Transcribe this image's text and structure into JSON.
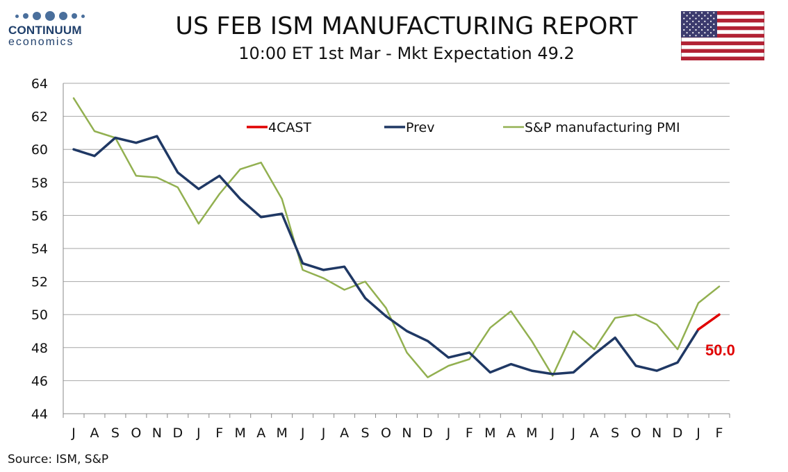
{
  "logo": {
    "name": "CONTINUUM",
    "sub": "economics"
  },
  "header": {
    "title": "US FEB ISM MANUFACTURING REPORT",
    "subtitle": "10:00 ET 1st Mar - Mkt Expectation 49.2"
  },
  "flag_icon": "us-flag-icon",
  "source": "Source: ISM, S&P",
  "colors": {
    "forecast": "#e00000",
    "prev": "#1f3864",
    "pmi": "#92b050",
    "grid": "#a6a6a6"
  },
  "chart_data": {
    "type": "line",
    "categories": [
      "J",
      "A",
      "S",
      "O",
      "N",
      "D",
      "J",
      "F",
      "M",
      "A",
      "M",
      "J",
      "J",
      "A",
      "S",
      "O",
      "N",
      "D",
      "J",
      "F",
      "M",
      "A",
      "M",
      "J",
      "J",
      "A",
      "S",
      "O",
      "N",
      "D",
      "J",
      "F"
    ],
    "ylim": [
      44,
      64
    ],
    "yticks": [
      44,
      46,
      48,
      50,
      52,
      54,
      56,
      58,
      60,
      62,
      64
    ],
    "grid": true,
    "legend": "top",
    "series": [
      {
        "name": "4CAST",
        "color": "#e00000",
        "values": [
          null,
          null,
          null,
          null,
          null,
          null,
          null,
          null,
          null,
          null,
          null,
          null,
          null,
          null,
          null,
          null,
          null,
          null,
          null,
          null,
          null,
          null,
          null,
          null,
          null,
          null,
          null,
          null,
          null,
          null,
          49.1,
          50.0
        ]
      },
      {
        "name": "Prev",
        "color": "#1f3864",
        "values": [
          60.0,
          59.6,
          60.7,
          60.4,
          60.8,
          58.6,
          57.6,
          58.4,
          57.0,
          55.9,
          56.1,
          53.1,
          52.7,
          52.9,
          51.0,
          49.9,
          49.0,
          48.4,
          47.4,
          47.7,
          46.5,
          47.0,
          46.6,
          46.4,
          46.5,
          47.6,
          48.6,
          46.9,
          46.6,
          47.1,
          49.1,
          null
        ]
      },
      {
        "name": "S&P manufacturing PMI",
        "color": "#92b050",
        "values": [
          63.1,
          61.1,
          60.7,
          58.4,
          58.3,
          57.7,
          55.5,
          57.3,
          58.8,
          59.2,
          57.0,
          52.7,
          52.2,
          51.5,
          52.0,
          50.4,
          47.7,
          46.2,
          46.9,
          47.3,
          49.2,
          50.2,
          48.4,
          46.3,
          49.0,
          47.9,
          49.8,
          50.0,
          49.4,
          47.9,
          50.7,
          51.7
        ]
      }
    ],
    "annotation": "50.0"
  }
}
